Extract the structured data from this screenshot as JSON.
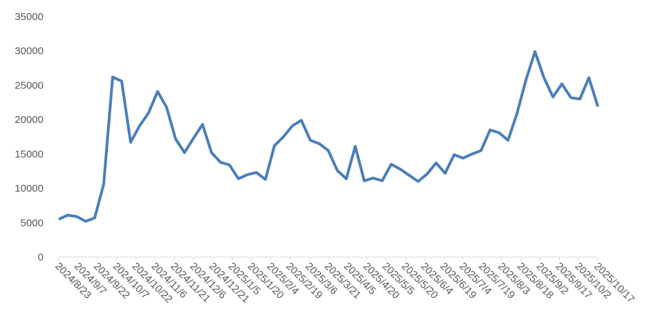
{
  "chart_data": {
    "type": "line",
    "x": [
      "2024/8/23",
      "2024/8/30",
      "2024/9/6",
      "2024/9/13",
      "2024/9/20",
      "2024/9/27",
      "2024/10/4",
      "2024/10/11",
      "2024/10/18",
      "2024/10/25",
      "2024/11/1",
      "2024/11/8",
      "2024/11/15",
      "2024/11/22",
      "2024/11/29",
      "2024/12/6",
      "2024/12/13",
      "2024/12/20",
      "2024/12/27",
      "2025/1/3",
      "2025/1/10",
      "2025/1/17",
      "2025/1/24",
      "2025/1/31",
      "2025/2/7",
      "2025/2/14",
      "2025/2/21",
      "2025/2/28",
      "2025/3/7",
      "2025/3/14",
      "2025/3/21",
      "2025/3/28",
      "2025/4/4",
      "2025/4/11",
      "2025/4/18",
      "2025/4/25",
      "2025/5/2",
      "2025/5/9",
      "2025/5/16",
      "2025/5/23",
      "2025/5/30",
      "2025/6/6",
      "2025/6/13",
      "2025/6/20",
      "2025/6/27",
      "2025/7/4",
      "2025/7/11",
      "2025/7/18",
      "2025/7/25",
      "2025/8/1",
      "2025/8/8",
      "2025/8/15",
      "2025/8/22",
      "2025/8/29",
      "2025/9/5",
      "2025/9/12",
      "2025/9/19",
      "2025/9/26",
      "2025/10/3",
      "2025/10/10",
      "2025/10/17"
    ],
    "series": [
      {
        "color": "#4a7ebb",
        "values": [
          5500,
          6100,
          5900,
          5200,
          5700,
          10600,
          26200,
          25600,
          16700,
          19100,
          21000,
          24100,
          21800,
          17200,
          15200,
          17300,
          19300,
          15200,
          13800,
          13400,
          11400,
          12000,
          12300,
          11300,
          16200,
          17500,
          19100,
          19900,
          17000,
          16500,
          15500,
          12600,
          11400,
          16100,
          11100,
          11500,
          11100,
          13500,
          12800,
          11900,
          11000,
          12100,
          13700,
          12200,
          14900,
          14400,
          15000,
          15500,
          18500,
          18100,
          17000,
          20900,
          25800,
          29900,
          26100,
          23300,
          25200,
          23200,
          23000,
          26100,
          21900
        ]
      }
    ],
    "xlim": [
      "2024/8/23",
      "2025/10/17"
    ],
    "xticks": [
      "2024/8/23",
      "2024/9/7",
      "2024/9/22",
      "2024/10/7",
      "2024/10/22",
      "2024/11/6",
      "2024/11/21",
      "2024/12/6",
      "2024/12/21",
      "2025/1/5",
      "2025/1/20",
      "2025/2/4",
      "2025/2/19",
      "2025/3/6",
      "2025/3/21",
      "2025/4/5",
      "2025/4/20",
      "2025/5/5",
      "2025/5/20",
      "2025/6/4",
      "2025/6/19",
      "2025/7/4",
      "2025/7/19",
      "2025/8/3",
      "2025/8/18",
      "2025/9/2",
      "2025/9/17",
      "2025/10/2",
      "2025/10/17"
    ],
    "ylim": [
      0,
      35000
    ],
    "yticks": [
      0,
      5000,
      10000,
      15000,
      20000,
      25000,
      30000,
      35000
    ]
  }
}
